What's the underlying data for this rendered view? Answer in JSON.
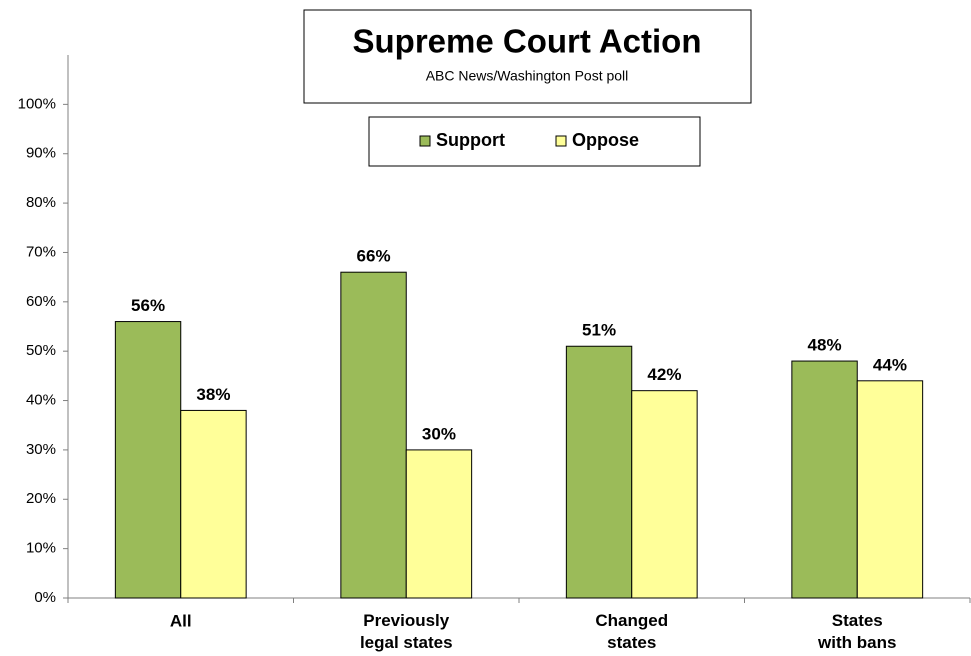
{
  "chart_data": {
    "type": "bar",
    "title": "Supreme Court Action",
    "subtitle": "ABC News/Washington  Post poll",
    "categories": [
      "All",
      "Previously legal states",
      "Changed states",
      "States with bans"
    ],
    "series": [
      {
        "name": "Support",
        "color": "#9bbb59",
        "values": [
          56,
          66,
          51,
          48
        ],
        "value_labels": [
          "56%",
          "66%",
          "51%",
          "48%"
        ]
      },
      {
        "name": "Oppose",
        "color": "#ffff99",
        "values": [
          38,
          30,
          42,
          44
        ],
        "value_labels": [
          "38%",
          "30%",
          "42%",
          "44%"
        ]
      }
    ],
    "ylim": [
      0,
      110
    ],
    "yticks": [
      {
        "value": 0,
        "label": "0%"
      },
      {
        "value": 10,
        "label": "10%"
      },
      {
        "value": 20,
        "label": "20%"
      },
      {
        "value": 30,
        "label": "30%"
      },
      {
        "value": 40,
        "label": "40%"
      },
      {
        "value": 50,
        "label": "50%"
      },
      {
        "value": 60,
        "label": "60%"
      },
      {
        "value": 70,
        "label": "70%"
      },
      {
        "value": 80,
        "label": "80%"
      },
      {
        "value": 90,
        "label": "90%"
      },
      {
        "value": 100,
        "label": "100%"
      }
    ],
    "grid": false,
    "legend": "top"
  }
}
